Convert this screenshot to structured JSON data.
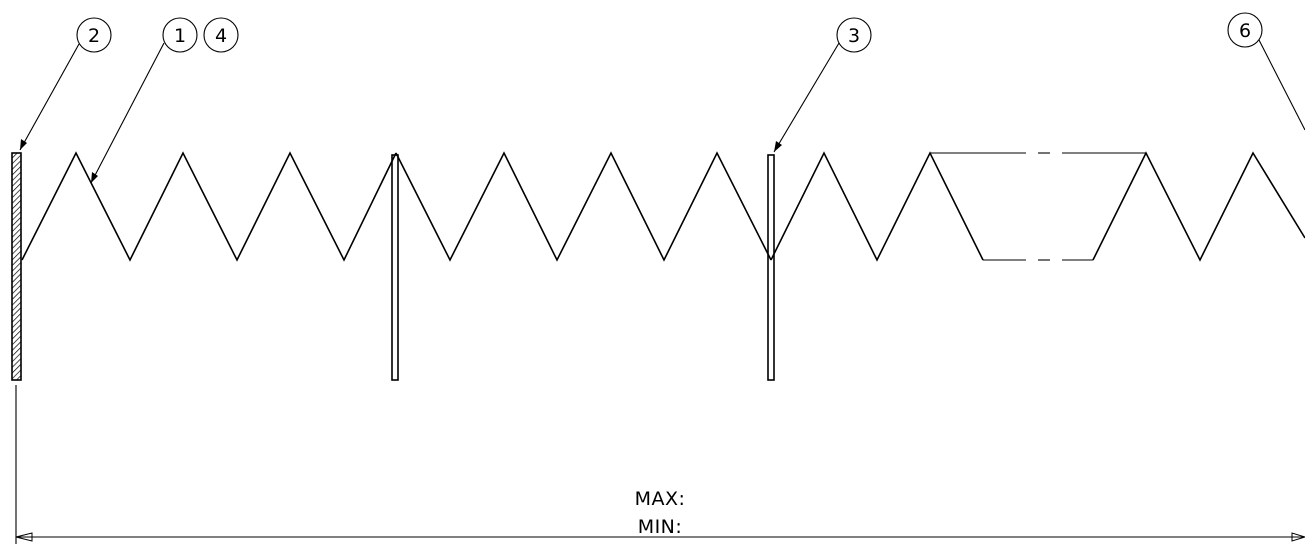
{
  "balloons": [
    {
      "id": "balloon-2",
      "label": "2"
    },
    {
      "id": "balloon-1",
      "label": "1"
    },
    {
      "id": "balloon-4",
      "label": "4"
    },
    {
      "id": "balloon-3",
      "label": "3"
    },
    {
      "id": "balloon-6",
      "label": "6"
    }
  ],
  "dimension": {
    "max_label": "MAX:",
    "min_label": "MIN:"
  },
  "colors": {
    "line": "#000000",
    "background": "#ffffff"
  }
}
